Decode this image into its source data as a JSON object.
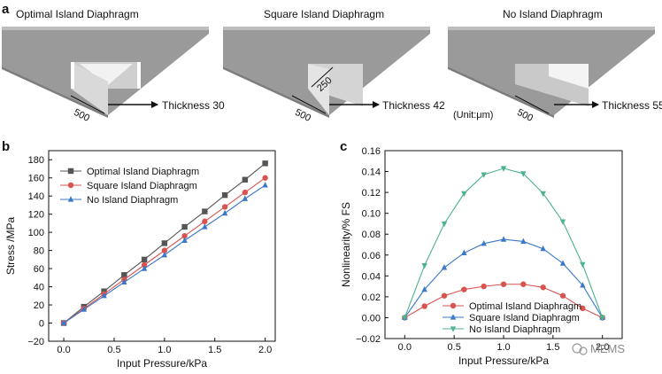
{
  "panel_letters": {
    "a": "a",
    "b": "b",
    "c": "c"
  },
  "diagrams": [
    {
      "title": "Optimal Island Diaphragm",
      "dim_length": "500",
      "thickness_label": "Thickness 30"
    },
    {
      "title": "Square Island Diaphragm",
      "dim_length": "500",
      "dim_island": "250",
      "thickness_label": "Thickness 42"
    },
    {
      "title": "No Island Diaphragm",
      "dim_length": "500",
      "thickness_label": "Thickness 55",
      "unit_note": "(Unit:μm)"
    }
  ],
  "watermark": "MEMS",
  "chart_data": [
    {
      "type": "line",
      "panel": "b",
      "xlabel": "Input Pressure/kPa",
      "ylabel": "Stress /MPa",
      "xlim": [
        -0.15,
        2.1
      ],
      "ylim": [
        -20,
        190
      ],
      "xticks": [
        0.0,
        0.5,
        1.0,
        1.5,
        2.0
      ],
      "xtick_labels": [
        "0.0",
        "0.5",
        "1.0",
        "1.5",
        "2.0"
      ],
      "yticks": [
        -20,
        0,
        20,
        40,
        60,
        80,
        100,
        120,
        140,
        160,
        180
      ],
      "ytick_labels": [
        "−20",
        "0",
        "20",
        "40",
        "60",
        "80",
        "100",
        "120",
        "140",
        "160",
        "180"
      ],
      "legend_position": "top-left",
      "x": [
        0.0,
        0.2,
        0.4,
        0.6,
        0.8,
        1.0,
        1.2,
        1.4,
        1.6,
        1.8,
        2.0
      ],
      "series": [
        {
          "name": "Optimal Island Diaphragm",
          "color": "#555555",
          "marker": "square",
          "values": [
            0,
            18,
            35,
            53,
            70,
            88,
            106,
            123,
            141,
            158,
            176
          ]
        },
        {
          "name": "Square Island Diaphragm",
          "color": "#d9534f",
          "marker": "circle",
          "values": [
            0,
            16,
            32,
            48,
            64,
            80,
            96,
            112,
            128,
            144,
            160
          ]
        },
        {
          "name": "No Island Diaphragm",
          "color": "#3a78c9",
          "marker": "triangle-up",
          "values": [
            0,
            15,
            30,
            45,
            60,
            75,
            91,
            106,
            121,
            137,
            152
          ]
        }
      ]
    },
    {
      "type": "line",
      "panel": "c",
      "xlabel": "Input Pressure/kPa",
      "ylabel": "Nonlinearity/% FS",
      "xlim": [
        -0.2,
        2.2
      ],
      "ylim": [
        -0.02,
        0.16
      ],
      "xticks": [
        0.0,
        0.5,
        1.0,
        1.5,
        2.0
      ],
      "xtick_labels": [
        "0.0",
        "0.5",
        "1.0",
        "1.5",
        "2.0"
      ],
      "yticks": [
        -0.02,
        0.0,
        0.02,
        0.04,
        0.06,
        0.08,
        0.1,
        0.12,
        0.14,
        0.16
      ],
      "ytick_labels": [
        "−0.02",
        "0.00",
        "0.02",
        "0.04",
        "0.06",
        "0.08",
        "0.10",
        "0.12",
        "0.14",
        "0.16"
      ],
      "legend_position": "bottom-center",
      "x": [
        0.0,
        0.2,
        0.4,
        0.6,
        0.8,
        1.0,
        1.2,
        1.4,
        1.6,
        1.8,
        2.0
      ],
      "series": [
        {
          "name": "Optimal Island Diaphragm",
          "color": "#d9534f",
          "marker": "circle",
          "values": [
            0.0,
            0.011,
            0.021,
            0.027,
            0.03,
            0.032,
            0.032,
            0.029,
            0.021,
            0.009,
            0.0
          ]
        },
        {
          "name": "Square Island Diaphragm",
          "color": "#3a78c9",
          "marker": "triangle-up",
          "values": [
            0.0,
            0.027,
            0.048,
            0.062,
            0.071,
            0.075,
            0.073,
            0.066,
            0.052,
            0.031,
            0.0
          ]
        },
        {
          "name": "No Island Diaphragm",
          "color": "#4cb38c",
          "marker": "triangle-down",
          "values": [
            0.0,
            0.05,
            0.09,
            0.119,
            0.137,
            0.143,
            0.138,
            0.119,
            0.092,
            0.051,
            0.0
          ]
        }
      ]
    }
  ]
}
